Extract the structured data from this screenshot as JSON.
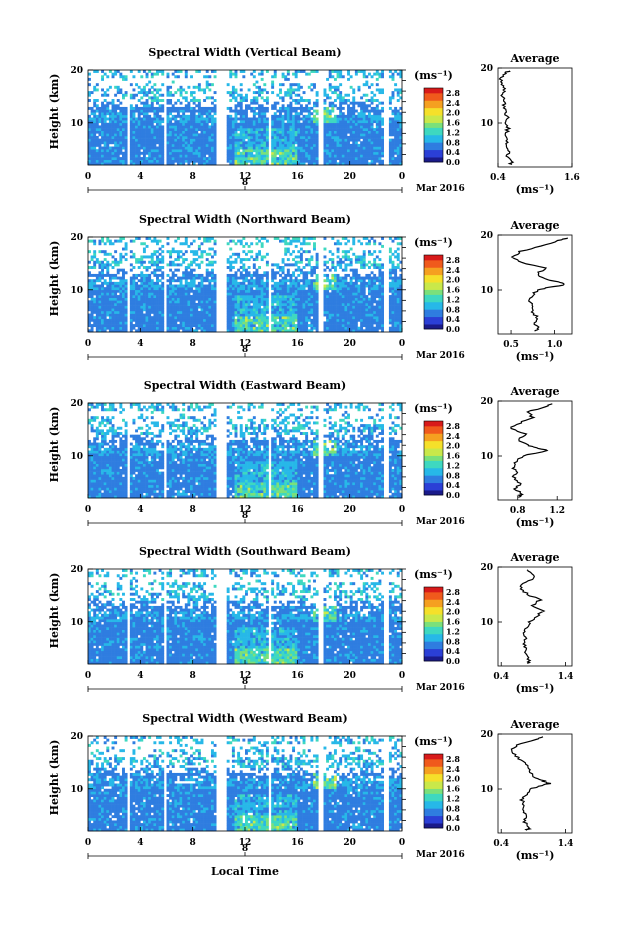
{
  "chart_data": {
    "type": "heatmap",
    "date_label": "Mar 2016",
    "xlabel": "Local Time",
    "ylabel": "Height (km)",
    "colorbar_unit": "(ms⁻¹)",
    "colorbar_ticks": [
      "2.8",
      "2.4",
      "2.0",
      "1.6",
      "1.2",
      "0.8",
      "0.4",
      "0.0"
    ],
    "colorbar_range": [
      0.0,
      3.0
    ],
    "x_range": [
      0,
      24
    ],
    "x_ticks": [
      "0",
      "4",
      "8",
      "12",
      "16",
      "20",
      "0"
    ],
    "sub_tick": "8",
    "y_range": [
      2,
      20
    ],
    "y_ticks": [
      "20",
      "10"
    ],
    "avg_title": "Average",
    "avg_xlabel": "(ms⁻¹)",
    "colors": {
      "scale": [
        "#1a1a8a",
        "#2b3fd6",
        "#2f7de0",
        "#27b8e8",
        "#3ed8c0",
        "#7be07a",
        "#c9e84a",
        "#f5e02a",
        "#f5a020",
        "#f05a1c",
        "#d81a1a"
      ]
    },
    "panels": [
      {
        "title": "Spectral Width (Vertical Beam)",
        "avg_ticks": [
          "0.4",
          "1.6"
        ],
        "avg_xlim": [
          0.4,
          1.6
        ],
        "avg_profile": {
          "heights": [
            2.5,
            3,
            4,
            5,
            6,
            7,
            8,
            9,
            10,
            11,
            12,
            13,
            14,
            15,
            16,
            17,
            18,
            19,
            19.5
          ],
          "values": [
            0.6,
            0.62,
            0.55,
            0.57,
            0.52,
            0.55,
            0.53,
            0.56,
            0.52,
            0.55,
            0.51,
            0.5,
            0.52,
            0.46,
            0.5,
            0.47,
            0.45,
            0.52,
            0.58
          ]
        }
      },
      {
        "title": "Spectral Width (Northward Beam)",
        "avg_ticks": [
          "0.5",
          "1.0"
        ],
        "avg_xlim": [
          0.35,
          1.2
        ],
        "avg_profile": {
          "heights": [
            2.5,
            3,
            4,
            5,
            6,
            7,
            8,
            9,
            10,
            10.5,
            11,
            11.5,
            12,
            13,
            14,
            15,
            16,
            17,
            18,
            19,
            19.5
          ],
          "values": [
            0.78,
            0.82,
            0.76,
            0.8,
            0.74,
            0.76,
            0.72,
            0.74,
            0.8,
            0.95,
            1.12,
            1.05,
            0.88,
            0.8,
            0.92,
            0.62,
            0.52,
            0.6,
            0.85,
            1.05,
            1.15
          ]
        }
      },
      {
        "title": "Spectral Width (Eastward Beam)",
        "avg_ticks": [
          "0.8",
          "1.2"
        ],
        "avg_xlim": [
          0.6,
          1.35
        ],
        "avg_profile": {
          "heights": [
            2.5,
            3,
            4,
            5,
            6,
            7,
            8,
            9,
            10,
            11,
            11.5,
            12,
            13,
            14,
            15,
            16,
            17,
            18,
            19,
            19.5
          ],
          "values": [
            0.8,
            0.84,
            0.78,
            0.82,
            0.76,
            0.78,
            0.75,
            0.78,
            0.85,
            1.1,
            1.0,
            0.9,
            0.8,
            0.88,
            0.72,
            0.82,
            0.95,
            0.9,
            1.08,
            1.15
          ]
        }
      },
      {
        "title": "Spectral Width (Southward Beam)",
        "avg_ticks": [
          "0.4",
          "1.4"
        ],
        "avg_xlim": [
          0.35,
          1.5
        ],
        "avg_profile": {
          "heights": [
            2.5,
            3,
            4,
            5,
            6,
            7,
            8,
            9,
            10,
            11,
            12,
            13,
            14,
            15,
            16,
            17,
            18,
            19,
            19.5
          ],
          "values": [
            0.8,
            0.84,
            0.78,
            0.8,
            0.76,
            0.78,
            0.75,
            0.8,
            0.85,
            0.95,
            1.05,
            0.9,
            1.0,
            0.82,
            0.7,
            0.75,
            0.92,
            0.85,
            0.8
          ]
        }
      },
      {
        "title": "Spectral Width (Westward Beam)",
        "avg_ticks": [
          "0.4",
          "1.4"
        ],
        "avg_xlim": [
          0.35,
          1.5
        ],
        "avg_profile": {
          "heights": [
            2.5,
            3,
            4,
            5,
            6,
            7,
            8,
            9,
            10,
            10.5,
            11,
            11.5,
            12,
            13,
            14,
            15,
            16,
            17,
            18,
            19,
            19.5
          ],
          "values": [
            0.8,
            0.84,
            0.76,
            0.8,
            0.74,
            0.76,
            0.72,
            0.78,
            0.85,
            1.0,
            1.15,
            1.05,
            0.92,
            0.85,
            0.8,
            0.75,
            0.62,
            0.55,
            0.65,
            0.95,
            1.05
          ]
        }
      }
    ]
  }
}
